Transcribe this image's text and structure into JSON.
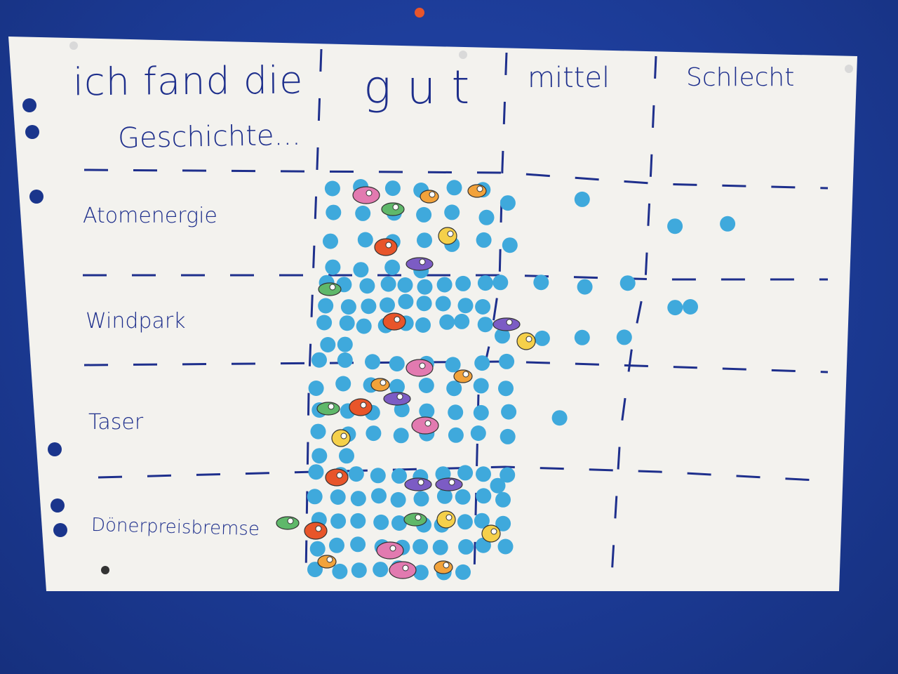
{
  "header": {
    "title_line1": "ich fand die",
    "title_line2": "Geschichte...",
    "columns": [
      "gut",
      "mittel",
      "Schlecht"
    ]
  },
  "rows": [
    {
      "label": "Atomenergie",
      "votes": {
        "gut": 22,
        "mittel": 3,
        "schlecht": 2
      }
    },
    {
      "label": "Windpark",
      "votes": {
        "gut": 29,
        "mittel": 8,
        "schlecht": 2
      }
    },
    {
      "label": "Taser",
      "votes": {
        "gut": 34,
        "mittel": 1,
        "schlecht": 0
      }
    },
    {
      "label": "Dönerpreisbremse",
      "votes": {
        "gut": 48,
        "mittel": 1,
        "schlecht": 0
      }
    }
  ],
  "colors": {
    "board": "#1d3f9e",
    "paper": "#f3f2ee",
    "marker": "#1e2f8c",
    "dot": "#3fa9dc",
    "pin": "#e8552a"
  }
}
